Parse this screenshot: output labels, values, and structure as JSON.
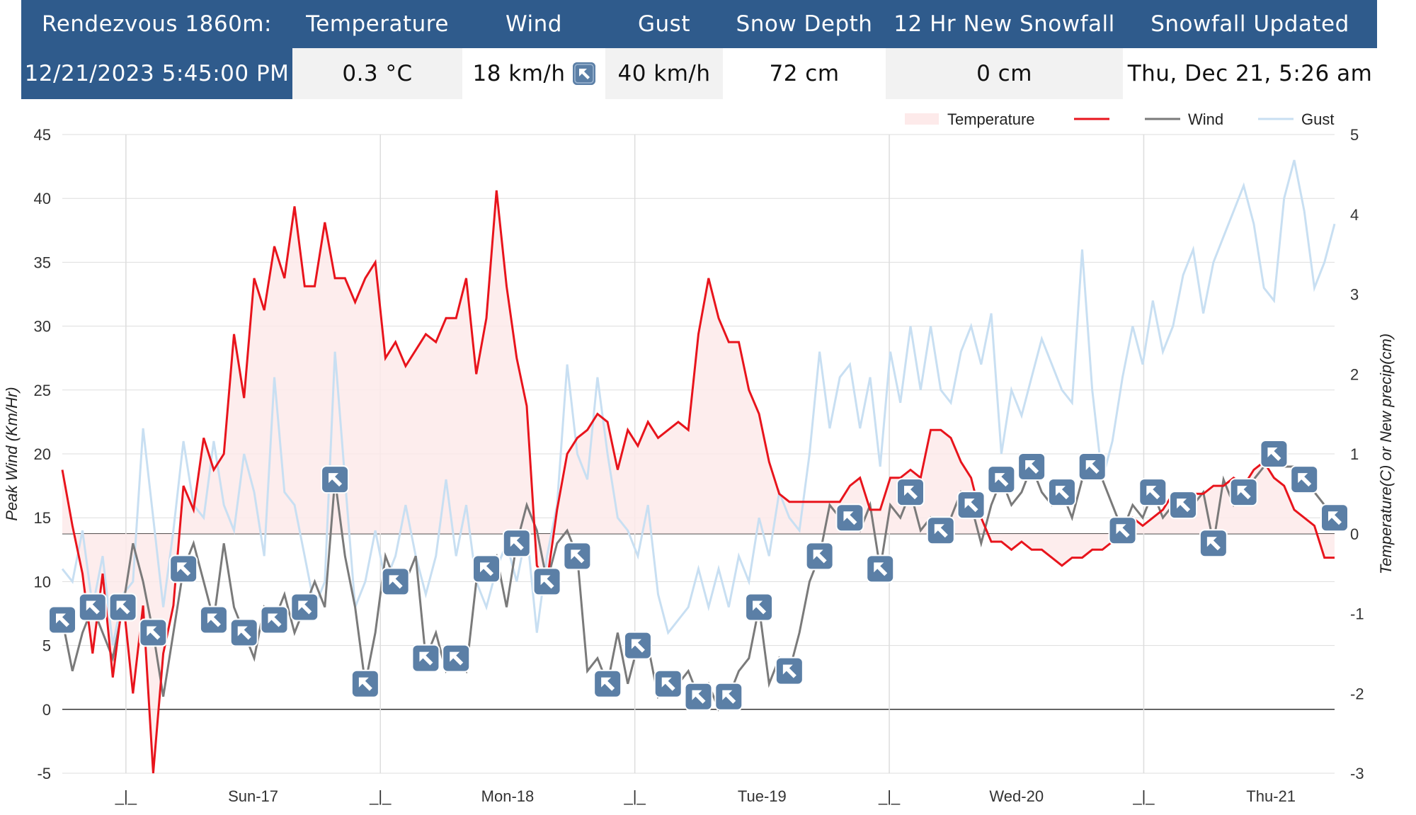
{
  "header": {
    "columns": [
      "Rendezvous 1860m:",
      "Temperature",
      "Wind",
      "Gust",
      "Snow Depth",
      "12 Hr New Snowfall",
      "Snowfall Updated"
    ],
    "values": [
      "12/21/2023 5:45:00 PM",
      "0.3 °C",
      "18 km/h",
      "40 km/h",
      "72 cm",
      "0 cm",
      "Thu, Dec 21, 5:26 am"
    ]
  },
  "colors": {
    "header_bg": "#2f5b8c",
    "temperature": "#e8141c",
    "temperature_fill": "#fdeaea",
    "wind": "#7a7a7a",
    "gust": "#c8dff2",
    "icon": "#5b7fa6"
  },
  "chart_data": {
    "type": "line",
    "legend": [
      "Temperature",
      "Wind",
      "Gust"
    ],
    "legend_position": "top-right",
    "y_left": {
      "label": "Peak Wind (Km/Hr)",
      "ticks": [
        "45",
        "40",
        "35",
        "30",
        "25",
        "20",
        "15",
        "10",
        "5",
        "0",
        "-5"
      ],
      "range": [
        -5,
        45
      ]
    },
    "y_right": {
      "label": "Temperature(C) or New precip(cm)",
      "ticks": [
        "5",
        "4",
        "3",
        "2",
        "1",
        "0",
        "-1",
        "-2",
        "-3"
      ],
      "range": [
        -3,
        5
      ]
    },
    "x_ticks": [
      "_|_",
      "Sun-17",
      "_|_",
      "Mon-18",
      "_|_",
      "Tue-19",
      "_|_",
      "Wed-20",
      "_|_",
      "Thu-21"
    ],
    "x_range_hours": [
      0,
      126
    ],
    "series": [
      {
        "name": "Temperature",
        "axis": "right",
        "x": [
          0,
          1,
          2,
          3,
          4,
          5,
          6,
          7,
          8,
          9,
          10,
          11,
          12,
          13,
          14,
          15,
          16,
          17,
          18,
          19,
          20,
          21,
          22,
          23,
          24,
          25,
          26,
          27,
          28,
          29,
          30,
          31,
          32,
          33,
          34,
          35,
          36,
          37,
          38,
          39,
          40,
          41,
          42,
          43,
          44,
          45,
          46,
          47,
          48,
          49,
          50,
          51,
          52,
          53,
          54,
          55,
          56,
          57,
          58,
          59,
          60,
          61,
          62,
          63,
          64,
          65,
          66,
          67,
          68,
          69,
          70,
          71,
          72,
          73,
          74,
          75,
          76,
          77,
          78,
          79,
          80,
          81,
          82,
          83,
          84,
          85,
          86,
          87,
          88,
          89,
          90,
          91,
          92,
          93,
          94,
          95,
          96,
          97,
          98,
          99,
          100,
          101,
          102,
          103,
          104,
          105,
          106,
          107,
          108,
          109,
          110,
          111,
          112,
          113,
          114,
          115,
          116,
          117,
          118,
          119,
          120,
          121,
          122,
          123,
          124,
          125,
          126
        ],
        "values": [
          0.8,
          0.1,
          -0.5,
          -1.5,
          -0.5,
          -1.8,
          -0.8,
          -2,
          -0.9,
          -3,
          -1.5,
          -0.9,
          0.6,
          0.3,
          1.2,
          0.8,
          1,
          2.5,
          1.7,
          3.2,
          2.8,
          3.6,
          3.2,
          4.1,
          3.1,
          3.1,
          3.9,
          3.2,
          3.2,
          2.9,
          3.2,
          3.4,
          2.2,
          2.4,
          2.1,
          2.3,
          2.5,
          2.4,
          2.7,
          2.7,
          3.2,
          2,
          2.7,
          4.3,
          3.1,
          2.2,
          1.6,
          -0.4,
          -0.6,
          0.3,
          1,
          1.2,
          1.3,
          1.5,
          1.4,
          0.8,
          1.3,
          1.1,
          1.4,
          1.2,
          1.3,
          1.4,
          1.3,
          2.5,
          3.2,
          2.7,
          2.4,
          2.4,
          1.8,
          1.5,
          0.9,
          0.5,
          0.4,
          0.4,
          0.4,
          0.4,
          0.4,
          0.4,
          0.6,
          0.7,
          0.3,
          0.3,
          0.7,
          0.7,
          0.8,
          0.7,
          1.3,
          1.3,
          1.2,
          0.9,
          0.7,
          0.2,
          -0.1,
          -0.1,
          -0.2,
          -0.1,
          -0.2,
          -0.2,
          -0.3,
          -0.4,
          -0.3,
          -0.3,
          -0.2,
          -0.2,
          -0.1,
          0,
          0.2,
          0.1,
          0.2,
          0.3,
          0.5,
          0.3,
          0.5,
          0.5,
          0.6,
          0.6,
          0.7,
          0.6,
          0.8,
          0.9,
          0.7,
          0.6,
          0.3,
          0.2,
          0.1,
          -0.3,
          -0.3
        ]
      },
      {
        "name": "Wind",
        "axis": "left",
        "x": [
          0,
          1,
          2,
          3,
          4,
          5,
          6,
          7,
          8,
          9,
          10,
          11,
          12,
          13,
          14,
          15,
          16,
          17,
          18,
          19,
          20,
          21,
          22,
          23,
          24,
          25,
          26,
          27,
          28,
          29,
          30,
          31,
          32,
          33,
          34,
          35,
          36,
          37,
          38,
          39,
          40,
          41,
          42,
          43,
          44,
          45,
          46,
          47,
          48,
          49,
          50,
          51,
          52,
          53,
          54,
          55,
          56,
          57,
          58,
          59,
          60,
          61,
          62,
          63,
          64,
          65,
          66,
          67,
          68,
          69,
          70,
          71,
          72,
          73,
          74,
          75,
          76,
          77,
          78,
          79,
          80,
          81,
          82,
          83,
          84,
          85,
          86,
          87,
          88,
          89,
          90,
          91,
          92,
          93,
          94,
          95,
          96,
          97,
          98,
          99,
          100,
          101,
          102,
          103,
          104,
          105,
          106,
          107,
          108,
          109,
          110,
          111,
          112,
          113,
          114,
          115,
          116,
          117,
          118,
          119,
          120,
          121,
          122,
          123,
          124,
          125,
          126
        ],
        "values": [
          7,
          3,
          6,
          8,
          6,
          4,
          8,
          13,
          10,
          6,
          1,
          6,
          11,
          13,
          10,
          7,
          13,
          8,
          6,
          4,
          8,
          7,
          9,
          6,
          8,
          10,
          8,
          18,
          12,
          8,
          2,
          6,
          12,
          10,
          10,
          12,
          4,
          6,
          3,
          4,
          3,
          10,
          11,
          12,
          8,
          13,
          16,
          14,
          10,
          13,
          14,
          12,
          3,
          4,
          2,
          6,
          2,
          5,
          5,
          1,
          2,
          2,
          3,
          1,
          2,
          0,
          1,
          3,
          4,
          8,
          2,
          4,
          3,
          6,
          10,
          12,
          16,
          15,
          15,
          14,
          16,
          11,
          16,
          15,
          17,
          14,
          15,
          14,
          15,
          17,
          16,
          13,
          16,
          18,
          16,
          17,
          19,
          17,
          16,
          17,
          15,
          18,
          19,
          18,
          16,
          14,
          16,
          15,
          17,
          15,
          16,
          16,
          16,
          17,
          13,
          18,
          16,
          17,
          18,
          19,
          20,
          19,
          19,
          18,
          17,
          16,
          15
        ]
      },
      {
        "name": "Gust",
        "axis": "left",
        "x": [
          0,
          1,
          2,
          3,
          4,
          5,
          6,
          7,
          8,
          9,
          10,
          11,
          12,
          13,
          14,
          15,
          16,
          17,
          18,
          19,
          20,
          21,
          22,
          23,
          24,
          25,
          26,
          27,
          28,
          29,
          30,
          31,
          32,
          33,
          34,
          35,
          36,
          37,
          38,
          39,
          40,
          41,
          42,
          43,
          44,
          45,
          46,
          47,
          48,
          49,
          50,
          51,
          52,
          53,
          54,
          55,
          56,
          57,
          58,
          59,
          60,
          61,
          62,
          63,
          64,
          65,
          66,
          67,
          68,
          69,
          70,
          71,
          72,
          73,
          74,
          75,
          76,
          77,
          78,
          79,
          80,
          81,
          82,
          83,
          84,
          85,
          86,
          87,
          88,
          89,
          90,
          91,
          92,
          93,
          94,
          95,
          96,
          97,
          98,
          99,
          100,
          101,
          102,
          103,
          104,
          105,
          106,
          107,
          108,
          109,
          110,
          111,
          112,
          113,
          114,
          115,
          116,
          117,
          118,
          119,
          120,
          121,
          122,
          123,
          124,
          125,
          126
        ],
        "values": [
          11,
          10,
          14,
          8,
          12,
          5,
          9,
          10,
          22,
          15,
          8,
          14,
          21,
          16,
          15,
          21,
          16,
          14,
          20,
          17,
          12,
          26,
          17,
          16,
          12,
          8,
          10,
          28,
          18,
          8,
          10,
          14,
          10,
          12,
          16,
          12,
          9,
          12,
          18,
          12,
          16,
          10,
          8,
          11,
          13,
          10,
          14,
          6,
          12,
          16,
          27,
          20,
          18,
          26,
          20,
          15,
          14,
          12,
          16,
          9,
          6,
          7,
          8,
          11,
          8,
          11,
          8,
          12,
          10,
          15,
          12,
          17,
          15,
          14,
          20,
          28,
          22,
          26,
          27,
          22,
          26,
          19,
          28,
          24,
          30,
          25,
          30,
          25,
          24,
          28,
          30,
          27,
          31,
          20,
          25,
          23,
          26,
          29,
          27,
          25,
          24,
          36,
          25,
          18,
          21,
          26,
          30,
          27,
          32,
          28,
          30,
          34,
          36,
          31,
          35,
          37,
          39,
          41,
          38,
          33,
          32,
          40,
          43,
          39,
          33,
          35,
          38
        ]
      }
    ]
  }
}
